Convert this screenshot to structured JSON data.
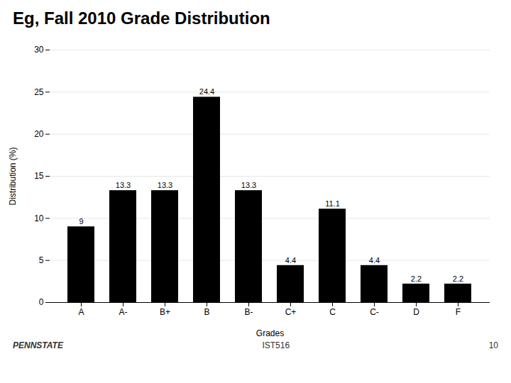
{
  "chart_data": {
    "type": "bar",
    "title": "Eg, Fall 2010 Grade Distribution",
    "categories": [
      "A",
      "A-",
      "B+",
      "B",
      "B-",
      "C+",
      "C",
      "C-",
      "D",
      "F"
    ],
    "values": [
      9,
      13.3,
      13.3,
      24.4,
      13.3,
      4.4,
      11.1,
      4.4,
      2.2,
      2.2
    ],
    "xlabel": "Grades",
    "ylabel": "Distribution (%)",
    "ylim": [
      0,
      30
    ],
    "yticks": [
      0,
      5,
      10,
      15,
      20,
      25,
      30
    ],
    "grid": true,
    "data_labels": true,
    "annotations": [
      "PENNSTATE",
      "IST516",
      "10"
    ]
  }
}
